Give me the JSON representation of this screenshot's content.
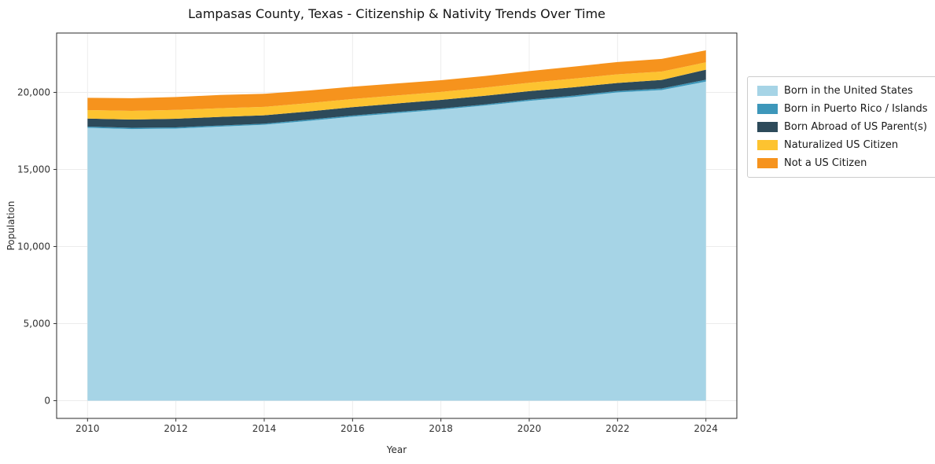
{
  "chart_data": {
    "type": "area",
    "stacked": true,
    "title": "Lampasas County, Texas - Citizenship & Nativity Trends Over Time",
    "xlabel": "Year",
    "ylabel": "Population",
    "x": [
      2010,
      2011,
      2012,
      2013,
      2014,
      2015,
      2016,
      2017,
      2018,
      2019,
      2020,
      2021,
      2022,
      2023,
      2024
    ],
    "series": [
      {
        "name": "Born in the United States",
        "color": "#a6d4e6",
        "values": [
          17700,
          17620,
          17650,
          17780,
          17900,
          18150,
          18420,
          18650,
          18880,
          19150,
          19450,
          19700,
          20000,
          20150,
          20700
        ]
      },
      {
        "name": "Born in Puerto Rico / Islands",
        "color": "#3d97ba",
        "values": [
          80,
          80,
          80,
          70,
          70,
          80,
          80,
          80,
          70,
          70,
          80,
          90,
          90,
          100,
          120
        ]
      },
      {
        "name": "Born Abroad of US Parent(s)",
        "color": "#2d4a5a",
        "values": [
          520,
          540,
          560,
          560,
          540,
          530,
          540,
          550,
          560,
          560,
          550,
          540,
          520,
          560,
          650
        ]
      },
      {
        "name": "Naturalized US Citizen",
        "color": "#fdc330",
        "values": [
          550,
          560,
          570,
          560,
          550,
          540,
          530,
          520,
          520,
          530,
          540,
          560,
          560,
          540,
          480
        ]
      },
      {
        "name": "Not a US Citizen",
        "color": "#f6931d",
        "values": [
          800,
          820,
          840,
          860,
          850,
          820,
          800,
          780,
          760,
          750,
          760,
          780,
          800,
          820,
          780
        ]
      }
    ],
    "xlim": [
      2009.3,
      2024.7
    ],
    "ylim": [
      -1150,
      23850
    ],
    "xticks": [
      2010,
      2012,
      2014,
      2016,
      2018,
      2020,
      2022,
      2024
    ],
    "yticks": [
      0,
      5000,
      10000,
      15000,
      20000
    ],
    "grid": true,
    "legend_position": "right"
  },
  "style": {
    "grid_color": "#ececec",
    "spine_color": "#2a2a2a",
    "tick_color": "#333333"
  }
}
